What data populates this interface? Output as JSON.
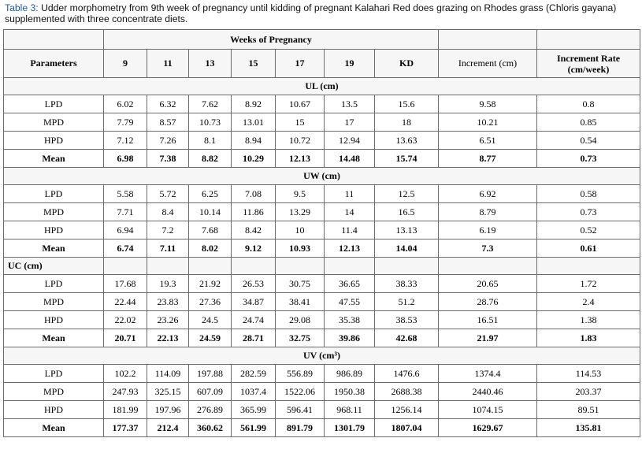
{
  "caption": {
    "label": "Table 3:",
    "text": " Udder morphometry from 9th week of pregnancy until kidding of pregnant Kalahari Red does grazing on Rhodes grass (Chloris gayana) supplemented with three concentrate diets."
  },
  "header": {
    "weeks_title": "Weeks of Pregnancy",
    "parameters": "Parameters",
    "weeks": [
      "9",
      "11",
      "13",
      "15",
      "17",
      "19",
      "KD"
    ],
    "increment": "Increment (cm)",
    "increment_rate": "Increment Rate (cm/week)"
  },
  "sections": [
    {
      "title": "UL (cm)",
      "align": "center",
      "rows": [
        {
          "label": "LPD",
          "cells": [
            "6.02",
            "6.32",
            "7.62",
            "8.92",
            "10.67",
            "13.5",
            "15.6",
            "9.58",
            "0.8"
          ]
        },
        {
          "label": "MPD",
          "cells": [
            "7.79",
            "8.57",
            "10.73",
            "13.01",
            "15",
            "17",
            "18",
            "10.21",
            "0.85"
          ]
        },
        {
          "label": "HPD",
          "cells": [
            "7.12",
            "7.26",
            "8.1",
            "8.94",
            "10.72",
            "12.94",
            "13.63",
            "6.51",
            "0.54"
          ]
        },
        {
          "label": "Mean",
          "cells": [
            "6.98",
            "7.38",
            "8.82",
            "10.29",
            "12.13",
            "14.48",
            "15.74",
            "8.77",
            "0.73"
          ]
        }
      ]
    },
    {
      "title": "UW (cm)",
      "align": "center",
      "rows": [
        {
          "label": "LPD",
          "cells": [
            "5.58",
            "5.72",
            "6.25",
            "7.08",
            "9.5",
            "11",
            "12.5",
            "6.92",
            "0.58"
          ]
        },
        {
          "label": "MPD",
          "cells": [
            "7.71",
            "8.4",
            "10.14",
            "11.86",
            "13.29",
            "14",
            "16.5",
            "8.79",
            "0.73"
          ]
        },
        {
          "label": "HPD",
          "cells": [
            "6.94",
            "7.2",
            "7.68",
            "8.42",
            "10",
            "11.4",
            "13.13",
            "6.19",
            "0.52"
          ]
        },
        {
          "label": "Mean",
          "cells": [
            "6.74",
            "7.11",
            "8.02",
            "9.12",
            "10.93",
            "12.13",
            "14.04",
            "7.3",
            "0.61"
          ]
        }
      ]
    },
    {
      "title": "UC (cm)",
      "align": "left",
      "rows": [
        {
          "label": "LPD",
          "cells": [
            "17.68",
            "19.3",
            "21.92",
            "26.53",
            "30.75",
            "36.65",
            "38.33",
            "20.65",
            "1.72"
          ]
        },
        {
          "label": "MPD",
          "cells": [
            "22.44",
            "23.83",
            "27.36",
            "34.87",
            "38.41",
            "47.55",
            "51.2",
            "28.76",
            "2.4"
          ]
        },
        {
          "label": "HPD",
          "cells": [
            "22.02",
            "23.26",
            "24.5",
            "24.74",
            "29.08",
            "35.38",
            "38.53",
            "16.51",
            "1.38"
          ]
        },
        {
          "label": "Mean",
          "cells": [
            "20.71",
            "22.13",
            "24.59",
            "28.71",
            "32.75",
            "39.86",
            "42.68",
            "21.97",
            "1.83"
          ]
        }
      ]
    },
    {
      "title": "UV (cm³)",
      "align": "center",
      "rows": [
        {
          "label": "LPD",
          "cells": [
            "102.2",
            "114.09",
            "197.88",
            "282.59",
            "556.89",
            "986.89",
            "1476.6",
            "1374.4",
            "114.53"
          ]
        },
        {
          "label": "MPD",
          "cells": [
            "247.93",
            "325.15",
            "607.09",
            "1037.4",
            "1522.06",
            "1950.38",
            "2688.38",
            "2440.46",
            "203.37"
          ]
        },
        {
          "label": "HPD",
          "cells": [
            "181.99",
            "197.96",
            "276.89",
            "365.99",
            "596.41",
            "968.11",
            "1256.14",
            "1074.15",
            "89.51"
          ]
        },
        {
          "label": "Mean",
          "cells": [
            "177.37",
            "212.4",
            "360.62",
            "561.99",
            "891.79",
            "1301.79",
            "1807.04",
            "1629.67",
            "135.81"
          ]
        }
      ]
    }
  ]
}
